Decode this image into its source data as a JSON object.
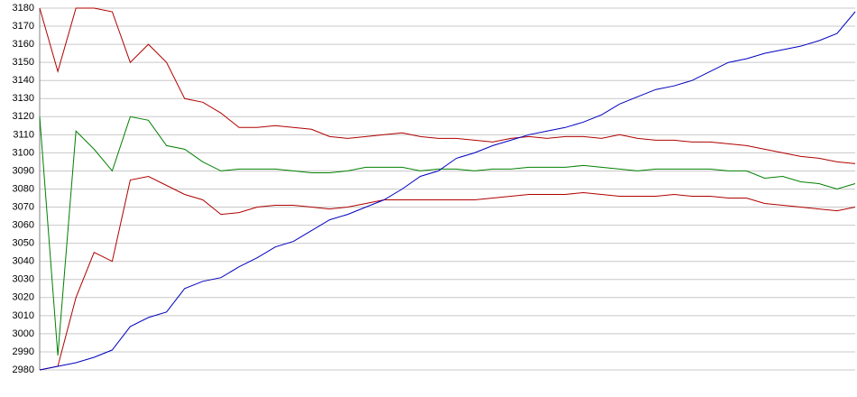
{
  "chart_data": {
    "type": "line",
    "ylim": [
      2980,
      3180
    ],
    "yticks": [
      2980,
      2990,
      3000,
      3010,
      3020,
      3030,
      3040,
      3050,
      3060,
      3070,
      3080,
      3090,
      3100,
      3110,
      3120,
      3130,
      3140,
      3150,
      3160,
      3170,
      3180
    ],
    "grid": true,
    "series": [
      {
        "color": "#b00000",
        "values": [
          3180,
          3145,
          3180,
          3180,
          3178,
          3150,
          3160,
          3150,
          3130,
          3128,
          3122,
          3114,
          3114,
          3115,
          3114,
          3113,
          3109,
          3108,
          3109,
          3110,
          3111,
          3109,
          3108,
          3108,
          3107,
          3106,
          3108,
          3109,
          3108,
          3109,
          3109,
          3108,
          3110,
          3108,
          3107,
          3107,
          3106,
          3106,
          3105,
          3104,
          3102,
          3100,
          3098,
          3097,
          3095,
          3094
        ]
      },
      {
        "color": "#008000",
        "values": [
          3120,
          2988,
          3112,
          3102,
          3090,
          3120,
          3118,
          3104,
          3102,
          3095,
          3090,
          3091,
          3091,
          3091,
          3090,
          3089,
          3089,
          3090,
          3092,
          3092,
          3092,
          3090,
          3091,
          3091,
          3090,
          3091,
          3091,
          3092,
          3092,
          3092,
          3093,
          3092,
          3091,
          3090,
          3091,
          3091,
          3091,
          3091,
          3090,
          3090,
          3086,
          3087,
          3084,
          3083,
          3080,
          3083
        ]
      },
      {
        "color": "#b00000",
        "values": [
          2980,
          2982,
          3020,
          3045,
          3040,
          3085,
          3087,
          3082,
          3077,
          3074,
          3066,
          3067,
          3070,
          3071,
          3071,
          3070,
          3069,
          3070,
          3072,
          3074,
          3074,
          3074,
          3074,
          3074,
          3074,
          3075,
          3076,
          3077,
          3077,
          3077,
          3078,
          3077,
          3076,
          3076,
          3076,
          3077,
          3076,
          3076,
          3075,
          3075,
          3072,
          3071,
          3070,
          3069,
          3068,
          3070
        ]
      },
      {
        "color": "#0000c0",
        "values": [
          2980,
          2982,
          2984,
          2987,
          2991,
          3004,
          3009,
          3012,
          3025,
          3029,
          3031,
          3037,
          3042,
          3048,
          3051,
          3057,
          3063,
          3066,
          3070,
          3074,
          3080,
          3087,
          3090,
          3097,
          3100,
          3104,
          3107,
          3110,
          3112,
          3114,
          3117,
          3121,
          3127,
          3131,
          3135,
          3137,
          3140,
          3145,
          3150,
          3152,
          3155,
          3157,
          3159,
          3162,
          3166,
          3178
        ]
      }
    ]
  }
}
